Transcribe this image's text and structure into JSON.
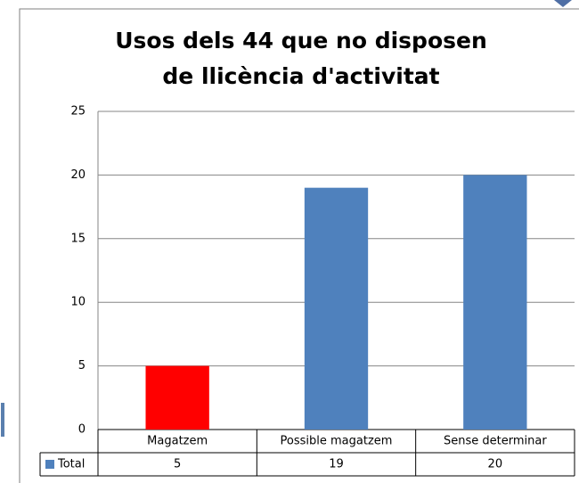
{
  "chart_data": {
    "type": "bar",
    "title": "Usos dels 44 que no disposen de llicència d'activitat",
    "categories": [
      "Magatzem",
      "Possible magatzem",
      "Sense determinar"
    ],
    "series": [
      {
        "name": "Total",
        "color": "#4f81bd",
        "values": [
          5,
          19,
          20
        ]
      }
    ],
    "colors": [
      "#ff0000",
      "#4f81bd",
      "#4f81bd"
    ],
    "ylim": [
      0,
      25
    ],
    "yticks": [
      0,
      5,
      10,
      15,
      20,
      25
    ],
    "grid": true
  }
}
